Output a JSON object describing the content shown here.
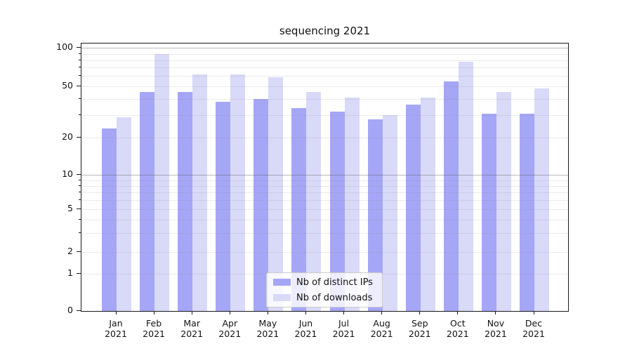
{
  "chart_data": {
    "type": "bar",
    "title": "sequencing 2021",
    "xlabel": "",
    "ylabel": "",
    "yscale": "symlog-like",
    "grid": true,
    "legend_position": "lower center",
    "categories": [
      "Jan",
      "Feb",
      "Mar",
      "Apr",
      "May",
      "Jun",
      "Jul",
      "Aug",
      "Sep",
      "Oct",
      "Nov",
      "Dec"
    ],
    "category_year": "2021",
    "series": [
      {
        "name": "Nb of distinct IPs",
        "color": "#a6a6f6",
        "values": [
          23,
          44,
          44,
          37,
          39,
          33,
          31,
          27,
          35,
          53,
          30,
          30
        ]
      },
      {
        "name": "Nb of downloads",
        "color": "#d9d9f8",
        "values": [
          28,
          87,
          60,
          60,
          57,
          44,
          40,
          29,
          40,
          76,
          44,
          47
        ]
      }
    ],
    "ytick_values": [
      100,
      50,
      20,
      10,
      5,
      2,
      1,
      0
    ],
    "ytick_labels": [
      "100",
      "50",
      "20",
      "10",
      "5",
      "2",
      "1",
      "0"
    ],
    "minor_gridline_values": [
      1,
      2,
      3,
      4,
      5,
      6,
      7,
      8,
      9,
      20,
      30,
      40,
      50,
      60,
      70,
      80,
      90
    ],
    "major_gridline_values": [
      10,
      100
    ],
    "minor_tick_values": [
      3,
      4,
      6,
      7,
      8,
      9,
      30,
      40,
      60,
      70,
      80,
      90
    ],
    "ylim_labels": [
      0,
      100
    ]
  }
}
